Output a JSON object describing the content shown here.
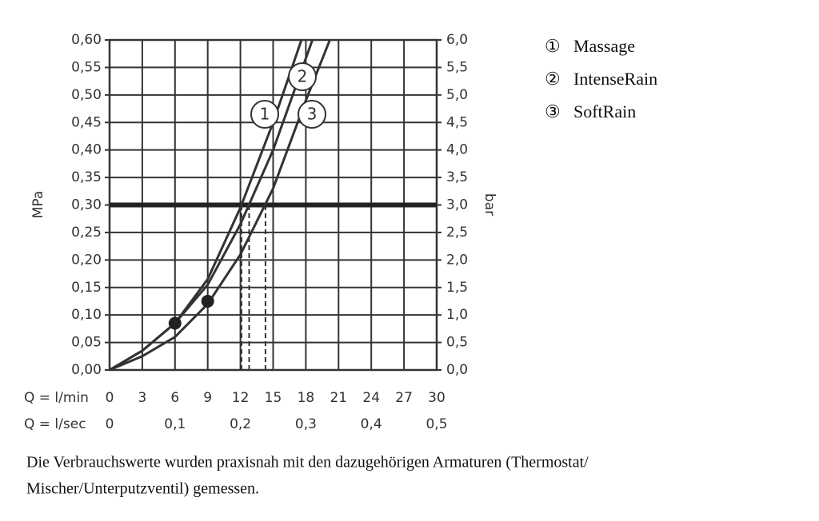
{
  "chart_data": {
    "type": "line",
    "y_label": "MPa",
    "y2_label": "bar",
    "x_label": "Q = l/min",
    "x2_label": "Q = l/sec",
    "xlim": [
      0,
      30
    ],
    "xticks": [
      0,
      3,
      6,
      9,
      12,
      15,
      18,
      21,
      24,
      27,
      30
    ],
    "x2lim": [
      0,
      0.5
    ],
    "x2ticks": [
      0,
      {
        "value": 0.1,
        "label": "0,1"
      },
      {
        "value": 0.2,
        "label": "0,2"
      },
      {
        "value": 0.3,
        "label": "0,3"
      },
      {
        "value": 0.4,
        "label": "0,4"
      },
      {
        "value": 0.5,
        "label": "0,5"
      }
    ],
    "ylim": [
      0,
      0.6
    ],
    "yticks": [
      {
        "value": 0,
        "label": "0,00"
      },
      {
        "value": 0.05,
        "label": "0,05"
      },
      {
        "value": 0.1,
        "label": "0,10"
      },
      {
        "value": 0.15,
        "label": "0,15"
      },
      {
        "value": 0.2,
        "label": "0,20"
      },
      {
        "value": 0.25,
        "label": "0,25"
      },
      {
        "value": 0.3,
        "label": "0,30"
      },
      {
        "value": 0.35,
        "label": "0,35"
      },
      {
        "value": 0.4,
        "label": "0,40"
      },
      {
        "value": 0.45,
        "label": "0,45"
      },
      {
        "value": 0.5,
        "label": "0,50"
      },
      {
        "value": 0.55,
        "label": "0,55"
      },
      {
        "value": 0.6,
        "label": "0,60"
      }
    ],
    "y2lim": [
      0,
      6
    ],
    "y2ticks": [
      {
        "value": 0,
        "label": "0,0"
      },
      {
        "value": 0.5,
        "label": "0,5"
      },
      {
        "value": 1,
        "label": "1,0"
      },
      {
        "value": 1.5,
        "label": "1,5"
      },
      {
        "value": 2,
        "label": "2,0"
      },
      {
        "value": 2.5,
        "label": "2,5"
      },
      {
        "value": 3,
        "label": "3,0"
      },
      {
        "value": 3.5,
        "label": "3,5"
      },
      {
        "value": 4,
        "label": "4,0"
      },
      {
        "value": 4.5,
        "label": "4,5"
      },
      {
        "value": 5,
        "label": "5,0"
      },
      {
        "value": 5.5,
        "label": "5,5"
      },
      {
        "value": 6,
        "label": "6,0"
      }
    ],
    "grid": true,
    "color": "#333333",
    "series": [
      {
        "name": "Massage",
        "symbol": "①",
        "label": "1",
        "x": [
          0,
          3,
          6,
          9,
          12,
          15,
          17.6
        ],
        "values": [
          0,
          0.035,
          0.085,
          0.165,
          0.295,
          0.45,
          0.6
        ]
      },
      {
        "name": "IntenseRain",
        "symbol": "②",
        "label": "2",
        "x": [
          0,
          3,
          6,
          9,
          12,
          15,
          18.6
        ],
        "values": [
          0,
          0.035,
          0.085,
          0.155,
          0.265,
          0.4,
          0.6
        ]
      },
      {
        "name": "SoftRain",
        "symbol": "③",
        "label": "3",
        "x": [
          0,
          3,
          6,
          9,
          12,
          15,
          18,
          20.2
        ],
        "values": [
          0,
          0.025,
          0.06,
          0.12,
          0.21,
          0.33,
          0.49,
          0.6
        ]
      }
    ],
    "markers": {
      "x": [
        6,
        9
      ],
      "values": [
        0.085,
        0.125
      ]
    },
    "reference_line": 0.3,
    "dashed_x": [
      12.1,
      12.8,
      14.3
    ]
  },
  "footnote": [
    "Die Verbrauchswerte wurden praxisnah mit den dazugehörigen Armaturen (Thermostat/",
    "Mischer/Unterputzventil) gemessen."
  ]
}
